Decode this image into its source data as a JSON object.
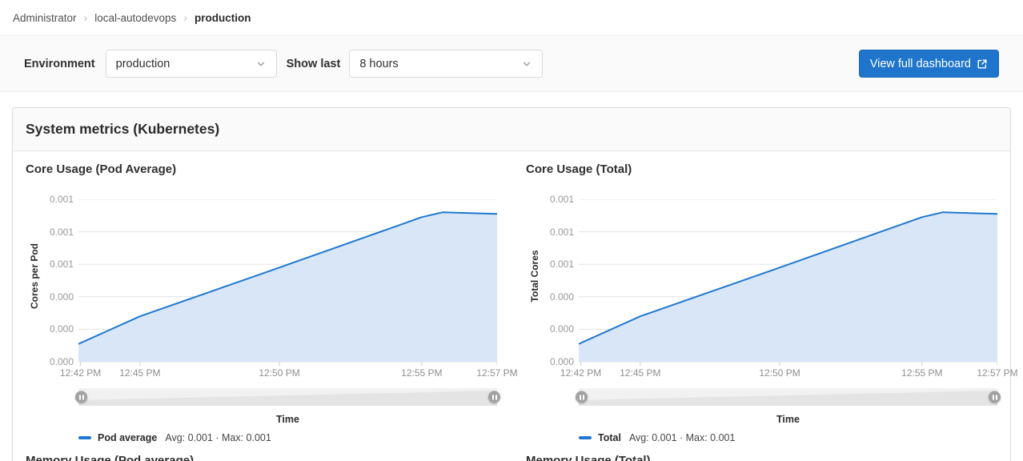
{
  "breadcrumb": {
    "items": [
      "Administrator",
      "local-autodevops",
      "production"
    ],
    "separator": "›"
  },
  "filters": {
    "environment_label": "Environment",
    "environment_value": "production",
    "show_last_label": "Show last",
    "show_last_value": "8 hours",
    "view_dashboard_button": "View full dashboard"
  },
  "section": {
    "title": "System metrics (Kubernetes)"
  },
  "next_section_titles": [
    "Memory Usage (Pod average)",
    "Memory Usage (Total)"
  ],
  "theme": {
    "accent_blue": "#1f75cb",
    "line_blue": "#1f78d1",
    "area_blue": "#d8e6f7",
    "grid_color": "#e3e3e3",
    "tick_mark_color": "#cccccc",
    "slider_track": "#f1f1f1",
    "slider_preview": "#e4e4e4",
    "handle_gray": "#a2a2a2"
  },
  "chart_data": [
    {
      "type": "area",
      "title": "Core Usage (Pod Average)",
      "ylabel": "Cores per Pod",
      "xlabel": "Time",
      "ylim": [
        0,
        0.001
      ],
      "grid": true,
      "legend_position": "bottom-left",
      "y_ticks_top_to_bottom": [
        "0.001",
        "0.001",
        "0.001",
        "0.000",
        "0.000",
        "0.000"
      ],
      "x_ticks": [
        "12:42 PM",
        "12:45 PM",
        "12:50 PM",
        "12:55 PM",
        "12:57 PM"
      ],
      "x_tick_pos_pct": [
        0.5,
        14.7,
        48,
        82,
        100
      ],
      "series": [
        {
          "name": "Pod average",
          "color": "#1f78d1",
          "area_color": "#d8e6f7",
          "stats": "Avg: 0.001 · Max: 0.001",
          "points": [
            {
              "time": "12:42 PM",
              "pos_pct": 0,
              "value": 0.00011
            },
            {
              "time": "12:45 PM",
              "pos_pct": 14.7,
              "value": 0.00028
            },
            {
              "time": "12:50 PM",
              "pos_pct": 48,
              "value": 0.00058
            },
            {
              "time": "12:55 PM",
              "pos_pct": 82,
              "value": 0.00089
            },
            {
              "time": "12:56 PM",
              "pos_pct": 87,
              "value": 0.00092
            },
            {
              "time": "12:57 PM",
              "pos_pct": 100,
              "value": 0.00091
            }
          ]
        }
      ]
    },
    {
      "type": "area",
      "title": "Core Usage (Total)",
      "ylabel": "Total Cores",
      "xlabel": "Time",
      "ylim": [
        0,
        0.001
      ],
      "grid": true,
      "legend_position": "bottom-left",
      "y_ticks_top_to_bottom": [
        "0.001",
        "0.001",
        "0.001",
        "0.000",
        "0.000",
        "0.000"
      ],
      "x_ticks": [
        "12:42 PM",
        "12:45 PM",
        "12:50 PM",
        "12:55 PM",
        "12:57 PM"
      ],
      "x_tick_pos_pct": [
        0.5,
        14.7,
        48,
        82,
        100
      ],
      "series": [
        {
          "name": "Total",
          "color": "#1f78d1",
          "area_color": "#d8e6f7",
          "stats": "Avg: 0.001 · Max: 0.001",
          "points": [
            {
              "time": "12:42 PM",
              "pos_pct": 0,
              "value": 0.00011
            },
            {
              "time": "12:45 PM",
              "pos_pct": 14.7,
              "value": 0.00028
            },
            {
              "time": "12:50 PM",
              "pos_pct": 48,
              "value": 0.00058
            },
            {
              "time": "12:55 PM",
              "pos_pct": 82,
              "value": 0.00089
            },
            {
              "time": "12:56 PM",
              "pos_pct": 87,
              "value": 0.00092
            },
            {
              "time": "12:57 PM",
              "pos_pct": 100,
              "value": 0.00091
            }
          ]
        }
      ]
    }
  ]
}
